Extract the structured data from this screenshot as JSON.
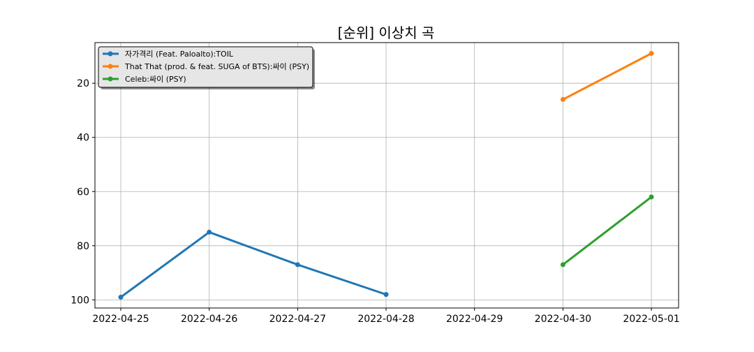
{
  "chart_data": {
    "type": "line",
    "title": "[순위] 이상치 곡",
    "xlabel": "",
    "ylabel": "",
    "x": [
      "2022-04-25",
      "2022-04-26",
      "2022-04-27",
      "2022-04-28",
      "2022-04-29",
      "2022-04-30",
      "2022-05-01"
    ],
    "y_inverted": true,
    "ylim": [
      103,
      5
    ],
    "yticks": [
      20,
      40,
      60,
      80,
      100
    ],
    "grid": true,
    "legend_position": "top-left",
    "series": [
      {
        "name": "자가격리 (Feat. Paloalto):TOIL",
        "color": "#1f77b4",
        "points": [
          {
            "x": "2022-04-25",
            "y": 99
          },
          {
            "x": "2022-04-26",
            "y": 75
          },
          {
            "x": "2022-04-27",
            "y": 87
          },
          {
            "x": "2022-04-28",
            "y": 98
          }
        ]
      },
      {
        "name": "That That (prod. & feat. SUGA of BTS):싸이 (PSY)",
        "color": "#ff7f0e",
        "points": [
          {
            "x": "2022-04-30",
            "y": 26
          },
          {
            "x": "2022-05-01",
            "y": 9
          }
        ]
      },
      {
        "name": "Celeb:싸이 (PSY)",
        "color": "#2ca02c",
        "points": [
          {
            "x": "2022-04-30",
            "y": 87
          },
          {
            "x": "2022-05-01",
            "y": 62
          }
        ]
      }
    ]
  }
}
